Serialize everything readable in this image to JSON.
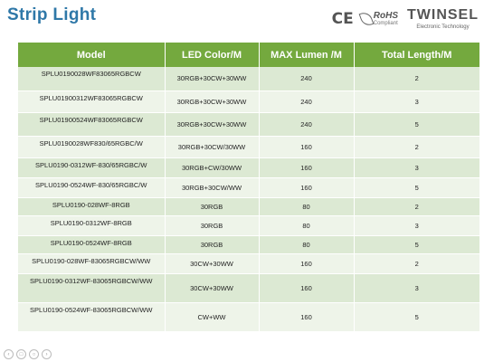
{
  "slide": {
    "title": "Strip Light"
  },
  "logos": {
    "ce": "CE",
    "rohs": "RoHS",
    "rohs_sub": "Compliant",
    "brand": "TWINSEL",
    "brand_tagline": "Electronic Technology"
  },
  "table": {
    "headers": [
      "Model",
      "LED Color/M",
      "MAX Lumen /M",
      "Total Length/M"
    ],
    "rows": [
      {
        "model": "SPLU0190028WF83065RGBCW",
        "color": "30RGB+30CW+30WW",
        "lumen": "240",
        "length": "2"
      },
      {
        "model": "SPLU01900312WF83065RGBCW",
        "color": "30RGB+30CW+30WW",
        "lumen": "240",
        "length": "3"
      },
      {
        "model": "SPLU01900524WF83065RGBCW",
        "color": "30RGB+30CW+30WW",
        "lumen": "240",
        "length": "5"
      },
      {
        "model": "SPLU0190028WF830/65RGBC/W",
        "color": "30RGB+30CW/30WW",
        "lumen": "160",
        "length": "2"
      },
      {
        "model": "SPLU0190-0312WF-830/65RGBC/W",
        "color": "30RGB+CW/30WW",
        "lumen": "160",
        "length": "3"
      },
      {
        "model": "SPLU0190-0524WF-830/65RGBC/W",
        "color": "30RGB+30CW/WW",
        "lumen": "160",
        "length": "5"
      },
      {
        "model": "SPLU0190-028WF-8RGB",
        "color": "30RGB",
        "lumen": "80",
        "length": "2"
      },
      {
        "model": "SPLU0190-0312WF-8RGB",
        "color": "30RGB",
        "lumen": "80",
        "length": "3"
      },
      {
        "model": "SPLU0190-0524WF-8RGB",
        "color": "30RGB",
        "lumen": "80",
        "length": "5"
      },
      {
        "model": "SPLU0190-028WF-83065RGBCW/WW",
        "color": "30CW+30WW",
        "lumen": "160",
        "length": "2"
      },
      {
        "model": "SPLU0190-0312WF-83065RGBCW/WW",
        "color": "30CW+30WW",
        "lumen": "160",
        "length": "3"
      },
      {
        "model": "SPLU0190-0524WF-83065RGBCW/WW",
        "color": "CW+WW",
        "lumen": "160",
        "length": "5"
      }
    ]
  }
}
